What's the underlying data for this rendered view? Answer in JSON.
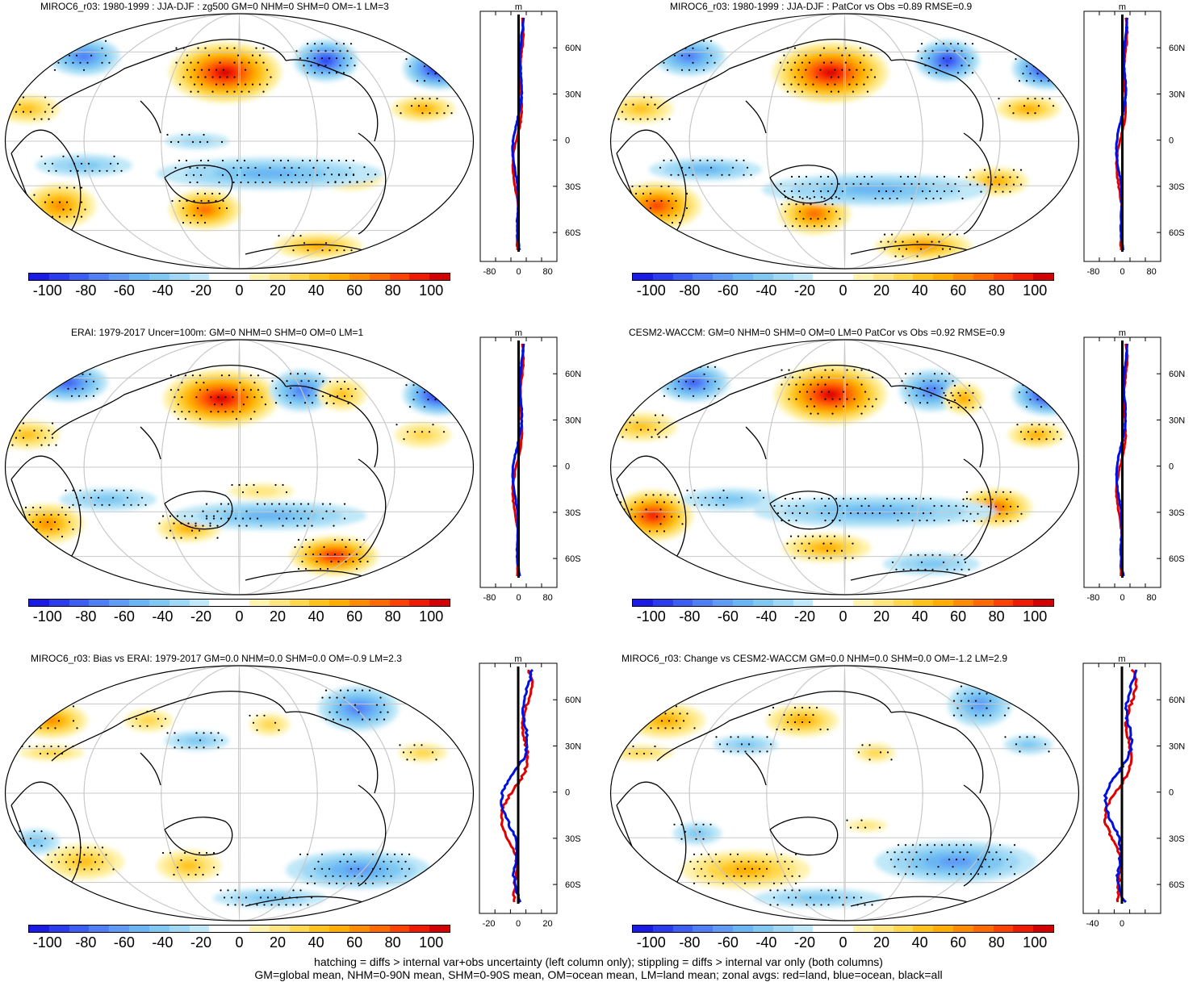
{
  "panels": [
    {
      "title": "MIROC6_r03: 1980-1999 : JJA-DJF : zg500 GM=0 NHM=0 SHM=0 OM=-1 LM=3",
      "zonal_unit": "m",
      "zonal_xticks": [
        "-80",
        "0",
        "80"
      ]
    },
    {
      "title": "MIROC6_r03: 1980-1999 : JJA-DJF : PatCor vs Obs =0.89 RMSE=0.9",
      "zonal_unit": "m",
      "zonal_xticks": [
        "-80",
        "0",
        "80"
      ]
    },
    {
      "title": "ERAI: 1979-2017 Uncer=100m: GM=0 NHM=0 SHM=0 OM=0 LM=1",
      "zonal_unit": "m",
      "zonal_xticks": [
        "-80",
        "0",
        "80"
      ]
    },
    {
      "title": "CESM2-WACCM: GM=0 NHM=0 SHM=0 OM=0 LM=0 PatCor vs Obs =0.92 RMSE=0.9",
      "zonal_unit": "m",
      "zonal_xticks": [
        "-80",
        "0",
        "80"
      ]
    },
    {
      "title": "MIROC6_r03: Bias vs ERAI: 1979-2017 GM=0.0 NHM=0.0 SHM=0.0 OM=-0.9 LM=2.3",
      "zonal_unit": "m",
      "zonal_xticks": [
        "-20",
        "0",
        "20"
      ]
    },
    {
      "title": "MIROC6_r03: Change vs CESM2-WACCM GM=0.0 NHM=0.0 SHM=0.0 OM=-1.2 LM=2.9",
      "zonal_unit": "m",
      "zonal_xticks": [
        "-40",
        "0"
      ]
    }
  ],
  "lat_labels": [
    "60N",
    "30N",
    "0",
    "30S",
    "60S"
  ],
  "colorbar": {
    "labels": [
      "-100",
      "-80",
      "-60",
      "-40",
      "-20",
      "0",
      "20",
      "40",
      "60",
      "80",
      "100"
    ],
    "colors": [
      "#1a1ae6",
      "#2b3cf0",
      "#3d5ef5",
      "#4f7ff7",
      "#5f9bf7",
      "#6ab5f4",
      "#7ec8f2",
      "#9ed8f5",
      "#c0e8f8",
      "#ffffff",
      "#ffffff",
      "#fff3b0",
      "#ffe680",
      "#ffd84d",
      "#ffc21a",
      "#ffad00",
      "#ff8c00",
      "#ff6a00",
      "#ff4000",
      "#f01a00",
      "#d40000"
    ]
  },
  "footer": {
    "line1": "hatching = diffs > internal var+obs uncertainty (left column only); stippling = diffs > internal var only (both columns)",
    "line2": "GM=global mean, NHM=0-90N mean, SHM=0-90S mean, OM=ocean mean, LM=land mean; zonal avgs: red=land, blue=ocean, black=all"
  }
}
